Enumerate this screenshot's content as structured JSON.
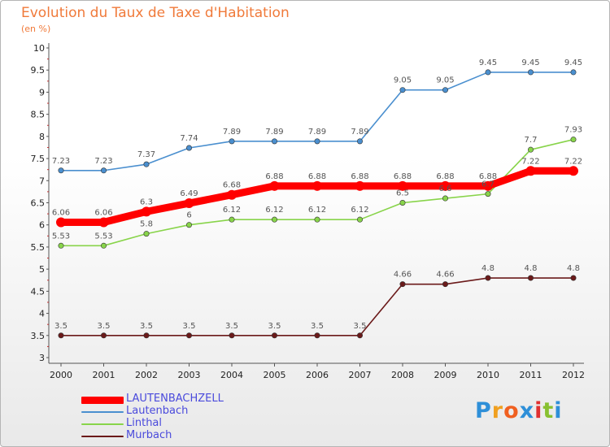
{
  "chart_data": {
    "type": "line",
    "title": "Evolution du Taux de Taxe d'Habitation",
    "unit_label": "(en %)",
    "x": [
      "2000",
      "2001",
      "2002",
      "2003",
      "2004",
      "2005",
      "2006",
      "2007",
      "2008",
      "2009",
      "2010",
      "2011",
      "2012"
    ],
    "y_ticks": [
      "3",
      "3.5",
      "4",
      "4.5",
      "5",
      "5.5",
      "6",
      "6.5",
      "7",
      "7.5",
      "8",
      "8.5",
      "9",
      "9.5",
      "10"
    ],
    "ylim": [
      3,
      10
    ],
    "grid": false,
    "legend_position": "bottom-left",
    "series": [
      {
        "name": "LAUTENBACHZELL",
        "color": "#ff0000",
        "values": [
          6.06,
          6.06,
          6.3,
          6.49,
          6.68,
          6.88,
          6.88,
          6.88,
          6.88,
          6.88,
          6.88,
          7.22,
          7.22
        ],
        "labels": [
          "6.06",
          "6.06",
          "6.3",
          "6.49",
          "6.68",
          "6.88",
          "6.88",
          "6.88",
          "6.88",
          "6.88",
          "6.88",
          "7.22",
          "7.22"
        ]
      },
      {
        "name": "Lautenbach",
        "color": "#4a8fcf",
        "values": [
          7.23,
          7.23,
          7.37,
          7.74,
          7.89,
          7.89,
          7.89,
          7.89,
          9.05,
          9.05,
          9.45,
          9.45,
          9.45
        ],
        "labels": [
          "7.23",
          "7.23",
          "7.37",
          "7.74",
          "7.89",
          "7.89",
          "7.89",
          "7.89",
          "9.05",
          "9.05",
          "9.45",
          "9.45",
          "9.45"
        ]
      },
      {
        "name": "Linthal",
        "color": "#88d44a",
        "values": [
          5.53,
          5.53,
          5.8,
          6.0,
          6.12,
          6.12,
          6.12,
          6.12,
          6.5,
          6.6,
          6.7,
          7.7,
          7.93
        ],
        "labels": [
          "5.53",
          "5.53",
          "5.8",
          "6",
          "6.12",
          "6.12",
          "6.12",
          "6.12",
          "6.5",
          "6.6",
          "6.7",
          "7.7",
          "7.93"
        ]
      },
      {
        "name": "Murbach",
        "color": "#6b1a1a",
        "values": [
          3.5,
          3.5,
          3.5,
          3.5,
          3.5,
          3.5,
          3.5,
          3.5,
          4.66,
          4.66,
          4.8,
          4.8,
          4.8
        ],
        "labels": [
          "3.5",
          "3.5",
          "3.5",
          "3.5",
          "3.5",
          "3.5",
          "3.5",
          "3.5",
          "4.66",
          "4.66",
          "4.8",
          "4.8",
          "4.8"
        ]
      }
    ]
  },
  "logo": {
    "letters": [
      "P",
      "r",
      "o",
      "x",
      "i",
      "t",
      "i"
    ],
    "colors": [
      "#2e8fd8",
      "#f0a020",
      "#f06020",
      "#2e8fd8",
      "#e03030",
      "#88c030",
      "#2e8fd8"
    ]
  }
}
